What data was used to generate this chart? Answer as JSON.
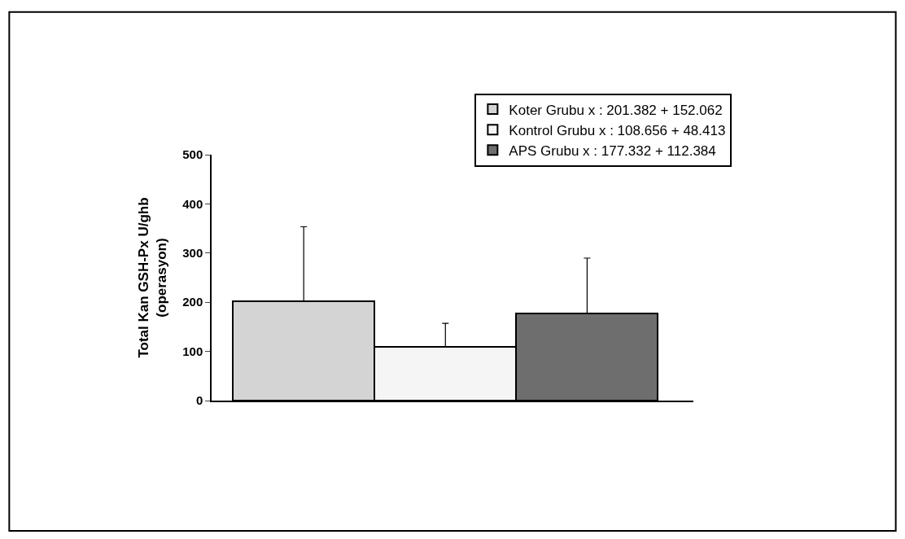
{
  "chart_data": {
    "type": "bar",
    "ylabel": "Total Kan GSH-Px U/ghb\n(operasyon)",
    "categories": [
      null,
      null,
      null
    ],
    "series": [
      {
        "name": "Koter Grubu x : 201.382 + 152.062",
        "color": "#d4d4d4",
        "values": [
          201.382,
          null,
          null
        ],
        "errors": [
          [
            201.382,
            353.444
          ],
          null,
          null
        ]
      },
      {
        "name": "Kontrol Grubu x : 108.656 + 48.413",
        "color": "#f5f5f5",
        "values": [
          null,
          108.656,
          null
        ],
        "errors": [
          null,
          [
            108.656,
            157.069
          ],
          null
        ]
      },
      {
        "name": "APS Grubu x : 177.332 + 112.384",
        "color": "#6e6e6e",
        "values": [
          null,
          null,
          177.332
        ],
        "errors": [
          null,
          null,
          [
            177.332,
            289.716
          ]
        ]
      }
    ],
    "ylim": [
      0,
      500
    ],
    "yticks": [
      0,
      100,
      200,
      300,
      400,
      500
    ],
    "legend": "top right"
  }
}
